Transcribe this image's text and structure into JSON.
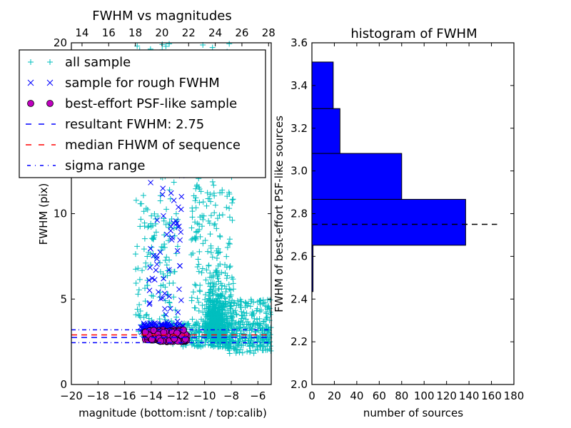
{
  "chart_data": [
    {
      "type": "scatter",
      "title": "FWHM vs magnitudes",
      "xlabel": "magnitude (bottom:isnt / top:calib)",
      "ylabel": "FWHM (pix)",
      "xlim": [
        -20,
        -5
      ],
      "ylim": [
        0,
        20
      ],
      "xticks": [
        "−20",
        "−18",
        "−16",
        "−14",
        "−12",
        "−10",
        "−8",
        "−6"
      ],
      "xtick_values": [
        -20,
        -18,
        -16,
        -14,
        -12,
        -10,
        -8,
        -6
      ],
      "yticks": [
        "0",
        "5",
        "10",
        "20"
      ],
      "ytick_values": [
        0,
        5,
        10,
        20
      ],
      "top_xticks": [
        "14",
        "16",
        "18",
        "20",
        "22",
        "24",
        "26",
        "28"
      ],
      "top_xtick_values": [
        14,
        16,
        18,
        20,
        22,
        24,
        26,
        28
      ],
      "top_offset": 33.2,
      "legend_position": "upper-left",
      "legend": [
        {
          "label": "all sample",
          "marker": "plus",
          "color": "#00bfbf"
        },
        {
          "label": "sample for rough FWHM",
          "marker": "x",
          "color": "#0000ff"
        },
        {
          "label": "best-effort PSF-like sample",
          "marker": "circle",
          "color": "#bf00bf"
        },
        {
          "label": "resultant FWHM: 2.75",
          "marker": "dashed",
          "color": "#0000ff"
        },
        {
          "label": "median FHWM of sequence",
          "marker": "dashed",
          "color": "#ff0000"
        },
        {
          "label": "sigma range",
          "marker": "dashdot",
          "color": "#0000ff"
        }
      ],
      "lines": {
        "resultant_fwhm": 2.75,
        "median_fwhm": 2.9,
        "sigma_low": 2.45,
        "sigma_high": 3.2
      },
      "clusters": {
        "all_sample": [
          {
            "xmin": -15.2,
            "xmax": -12.0,
            "ymin": 2.8,
            "ymax": 20,
            "n": 260
          },
          {
            "xmin": -11.0,
            "xmax": -7.8,
            "ymin": 2.2,
            "ymax": 20,
            "n": 420
          },
          {
            "xmin": -10.2,
            "xmax": -8.0,
            "ymin": 2.0,
            "ymax": 8.0,
            "n": 520
          },
          {
            "xmin": -8.5,
            "xmax": -5.0,
            "ymin": 1.8,
            "ymax": 5.0,
            "n": 240
          },
          {
            "xmin": -12.5,
            "xmax": -5.0,
            "ymin": 2.2,
            "ymax": 3.6,
            "n": 180
          }
        ],
        "rough_sample": [
          {
            "xmin": -14.8,
            "xmax": -11.6,
            "ymin": 3.0,
            "ymax": 3.6,
            "n": 120
          },
          {
            "xmin": -14.2,
            "xmax": -11.6,
            "ymin": 3.6,
            "ymax": 12.5,
            "n": 55
          }
        ],
        "psf_sample": [
          {
            "xmin": -14.5,
            "xmax": -11.3,
            "ymin": 2.5,
            "ymax": 3.2,
            "n": 150
          }
        ]
      }
    },
    {
      "type": "bar",
      "orientation": "horizontal",
      "title": "histogram of FWHM",
      "xlabel": "number of sources",
      "ylabel": "FWHM of best-effort PSF-like sources",
      "xlim": [
        0,
        180
      ],
      "ylim": [
        2.0,
        3.6
      ],
      "xticks": [
        "0",
        "20",
        "40",
        "60",
        "80",
        "100",
        "120",
        "140",
        "160",
        "180"
      ],
      "xtick_values": [
        0,
        20,
        40,
        60,
        80,
        100,
        120,
        140,
        160,
        180
      ],
      "yticks": [
        "2.0",
        "2.2",
        "2.4",
        "2.6",
        "2.8",
        "3.0",
        "3.2",
        "3.4",
        "3.6"
      ],
      "ytick_values": [
        2.0,
        2.2,
        2.4,
        2.6,
        2.8,
        3.0,
        3.2,
        3.4,
        3.6
      ],
      "bins": [
        {
          "low": 2.435,
          "high": 2.652,
          "count": 1
        },
        {
          "low": 2.652,
          "high": 2.867,
          "count": 137
        },
        {
          "low": 2.867,
          "high": 3.082,
          "count": 80
        },
        {
          "low": 3.082,
          "high": 3.292,
          "count": 25
        },
        {
          "low": 3.292,
          "high": 3.51,
          "count": 19
        }
      ],
      "reference_line": {
        "value": 2.75,
        "xmax": 165,
        "style": "dashed",
        "color": "#000000"
      },
      "bar_color": "#0000ff"
    }
  ]
}
